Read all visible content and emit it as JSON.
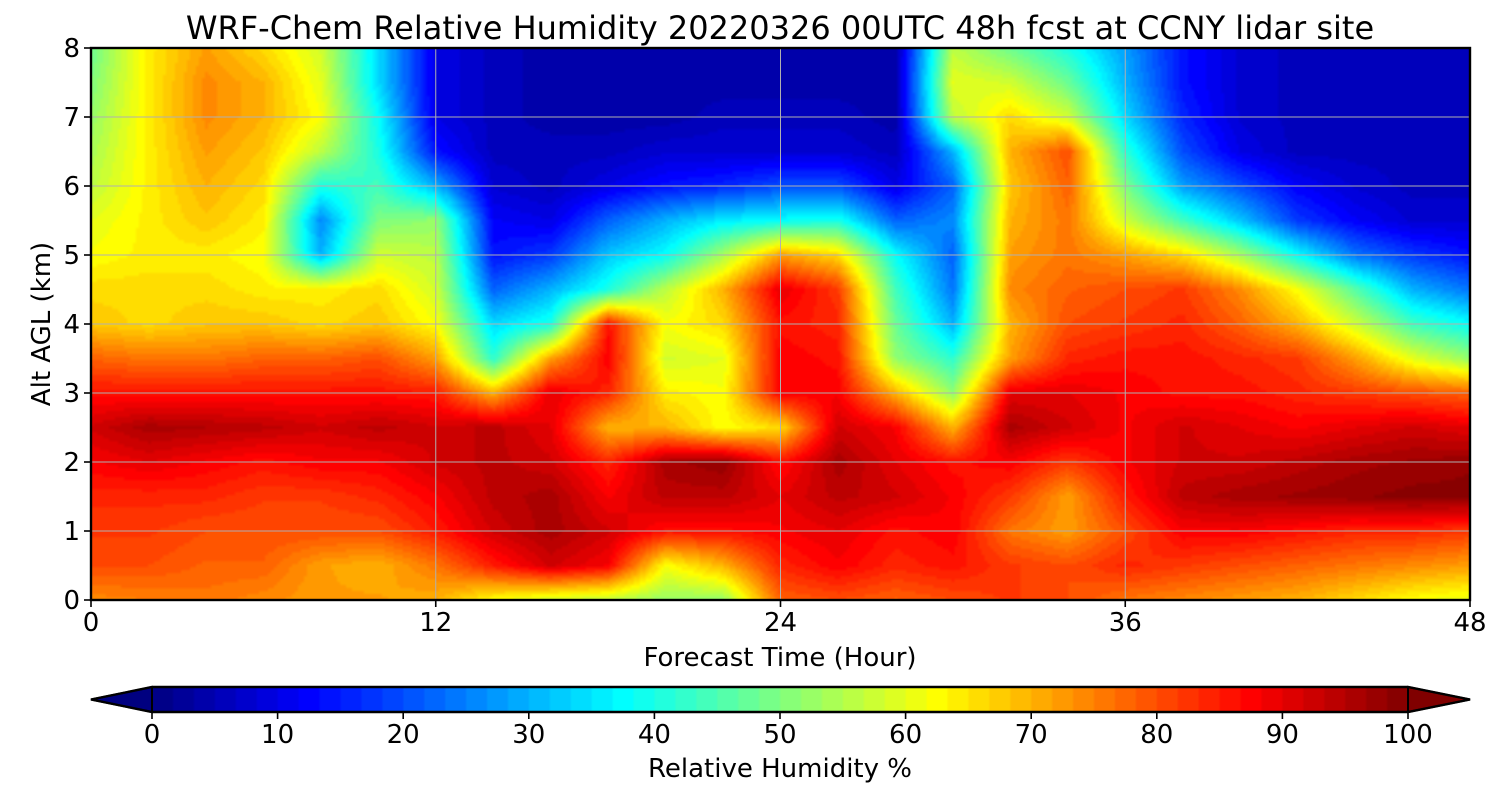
{
  "chart_data": {
    "type": "heatmap",
    "title": "WRF-Chem Relative Humidity 20220326 00UTC 48h fcst at CCNY lidar site",
    "xlabel": "Forecast Time (Hour)",
    "ylabel": "Alt AGL (km)",
    "xlim": [
      0,
      48
    ],
    "ylim": [
      0,
      8
    ],
    "x_ticks": [
      0,
      12,
      24,
      36,
      48
    ],
    "y_ticks": [
      0,
      1,
      2,
      3,
      4,
      5,
      6,
      7,
      8
    ],
    "grid": true,
    "x": [
      0,
      2,
      4,
      6,
      8,
      10,
      12,
      14,
      16,
      18,
      20,
      22,
      24,
      26,
      28,
      30,
      32,
      34,
      36,
      38,
      40,
      42,
      44,
      46,
      48
    ],
    "y": [
      0,
      0.5,
      1,
      1.5,
      2,
      2.5,
      3,
      3.5,
      4,
      4.5,
      5,
      5.5,
      6,
      6.5,
      7,
      7.5,
      8
    ],
    "z": [
      [
        74,
        75,
        76,
        74,
        72,
        72,
        70,
        62,
        58,
        56,
        52,
        52,
        78,
        80,
        78,
        80,
        82,
        80,
        76,
        74,
        72,
        70,
        66,
        62,
        60
      ],
      [
        80,
        80,
        78,
        78,
        72,
        70,
        76,
        85,
        92,
        88,
        62,
        70,
        84,
        88,
        84,
        86,
        82,
        80,
        84,
        82,
        80,
        78,
        76,
        74,
        72
      ],
      [
        82,
        82,
        80,
        80,
        80,
        80,
        85,
        92,
        96,
        92,
        86,
        86,
        88,
        90,
        86,
        88,
        76,
        72,
        80,
        88,
        88,
        86,
        84,
        84,
        82
      ],
      [
        84,
        84,
        84,
        82,
        82,
        84,
        88,
        94,
        96,
        88,
        94,
        94,
        90,
        94,
        92,
        88,
        82,
        72,
        85,
        94,
        96,
        97,
        98,
        99,
        99
      ],
      [
        88,
        90,
        88,
        86,
        88,
        88,
        92,
        94,
        92,
        84,
        96,
        98,
        86,
        96,
        90,
        86,
        88,
        82,
        88,
        92,
        92,
        94,
        96,
        97,
        98
      ],
      [
        92,
        96,
        95,
        94,
        92,
        94,
        92,
        94,
        90,
        70,
        70,
        62,
        66,
        92,
        88,
        70,
        96,
        92,
        88,
        92,
        90,
        88,
        90,
        92,
        90
      ],
      [
        86,
        86,
        86,
        86,
        86,
        86,
        85,
        70,
        90,
        84,
        64,
        62,
        88,
        88,
        70,
        52,
        90,
        90,
        88,
        86,
        86,
        84,
        82,
        80,
        78
      ],
      [
        78,
        76,
        76,
        78,
        78,
        80,
        72,
        42,
        72,
        88,
        58,
        60,
        88,
        86,
        52,
        42,
        72,
        84,
        86,
        86,
        84,
        82,
        72,
        60,
        52
      ],
      [
        68,
        66,
        68,
        68,
        66,
        68,
        62,
        34,
        40,
        86,
        62,
        66,
        86,
        84,
        48,
        30,
        70,
        80,
        82,
        84,
        78,
        70,
        58,
        44,
        38
      ],
      [
        66,
        66,
        66,
        64,
        64,
        66,
        58,
        22,
        30,
        40,
        56,
        70,
        90,
        82,
        44,
        24,
        74,
        78,
        80,
        82,
        74,
        62,
        46,
        30,
        24
      ],
      [
        62,
        64,
        64,
        62,
        30,
        58,
        56,
        14,
        18,
        32,
        38,
        54,
        72,
        66,
        38,
        22,
        72,
        76,
        72,
        66,
        54,
        38,
        24,
        18,
        14
      ],
      [
        60,
        64,
        68,
        64,
        26,
        50,
        52,
        12,
        10,
        22,
        30,
        36,
        38,
        40,
        22,
        26,
        70,
        76,
        58,
        44,
        32,
        18,
        12,
        8,
        8
      ],
      [
        56,
        64,
        70,
        66,
        40,
        44,
        30,
        8,
        6,
        10,
        14,
        16,
        20,
        20,
        10,
        22,
        68,
        78,
        50,
        28,
        20,
        12,
        8,
        6,
        6
      ],
      [
        54,
        64,
        72,
        68,
        56,
        40,
        14,
        6,
        6,
        6,
        8,
        8,
        8,
        8,
        6,
        30,
        70,
        80,
        42,
        20,
        10,
        6,
        6,
        6,
        6
      ],
      [
        52,
        64,
        74,
        70,
        62,
        38,
        10,
        6,
        4,
        4,
        4,
        6,
        6,
        6,
        4,
        56,
        66,
        58,
        34,
        16,
        8,
        6,
        6,
        6,
        6
      ],
      [
        50,
        64,
        74,
        70,
        60,
        34,
        10,
        6,
        4,
        4,
        4,
        4,
        4,
        4,
        4,
        60,
        58,
        48,
        30,
        14,
        8,
        6,
        6,
        6,
        6
      ],
      [
        48,
        64,
        72,
        66,
        58,
        34,
        10,
        6,
        4,
        4,
        4,
        4,
        4,
        4,
        4,
        56,
        48,
        40,
        28,
        14,
        8,
        6,
        6,
        6,
        6
      ]
    ],
    "colorbar": {
      "label": "Relative Humidity %",
      "ticks": [
        0,
        10,
        20,
        30,
        40,
        50,
        60,
        70,
        80,
        90,
        100
      ],
      "range": [
        0,
        100
      ],
      "extend": "both",
      "colormap": "jet",
      "orientation": "horizontal",
      "placement": "bottom"
    }
  }
}
